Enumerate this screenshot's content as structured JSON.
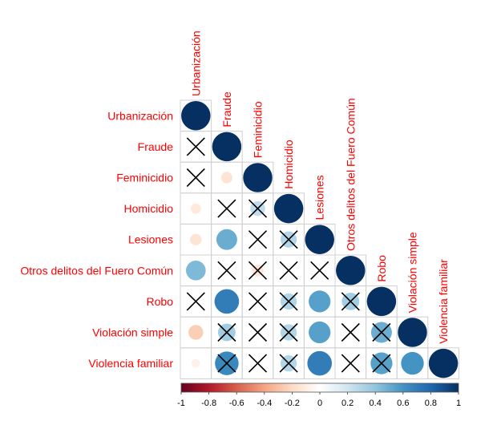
{
  "chart_data": {
    "type": "heatmap",
    "subtype": "correlation-matrix-lower-triangle",
    "labels": [
      "Urbanización",
      "Fraude",
      "Feminicidio",
      "Homicidio",
      "Lesiones",
      "Otros delitos del Fuero Común",
      "Robo",
      "Violación simple",
      "Violencia familiar"
    ],
    "cells": [
      {
        "row": 0,
        "col": 0,
        "value": 1.0,
        "insignificant": false
      },
      {
        "row": 1,
        "col": 0,
        "value": 0.0,
        "insignificant": true
      },
      {
        "row": 1,
        "col": 1,
        "value": 1.0,
        "insignificant": false
      },
      {
        "row": 2,
        "col": 0,
        "value": 0.0,
        "insignificant": true
      },
      {
        "row": 2,
        "col": 1,
        "value": -0.15,
        "insignificant": false
      },
      {
        "row": 2,
        "col": 2,
        "value": 1.0,
        "insignificant": false
      },
      {
        "row": 3,
        "col": 0,
        "value": -0.12,
        "insignificant": false
      },
      {
        "row": 3,
        "col": 1,
        "value": 0.0,
        "insignificant": true
      },
      {
        "row": 3,
        "col": 2,
        "value": 0.25,
        "insignificant": true
      },
      {
        "row": 3,
        "col": 3,
        "value": 1.0,
        "insignificant": false
      },
      {
        "row": 4,
        "col": 0,
        "value": -0.15,
        "insignificant": false
      },
      {
        "row": 4,
        "col": 1,
        "value": 0.5,
        "insignificant": false
      },
      {
        "row": 4,
        "col": 2,
        "value": 0.0,
        "insignificant": true
      },
      {
        "row": 4,
        "col": 3,
        "value": 0.3,
        "insignificant": true
      },
      {
        "row": 4,
        "col": 4,
        "value": 1.0,
        "insignificant": false
      },
      {
        "row": 5,
        "col": 0,
        "value": 0.45,
        "insignificant": false
      },
      {
        "row": 5,
        "col": 1,
        "value": 0.0,
        "insignificant": true
      },
      {
        "row": 5,
        "col": 2,
        "value": -0.15,
        "insignificant": true
      },
      {
        "row": 5,
        "col": 3,
        "value": 0.0,
        "insignificant": true
      },
      {
        "row": 5,
        "col": 4,
        "value": 0.0,
        "insignificant": true
      },
      {
        "row": 5,
        "col": 5,
        "value": 1.0,
        "insignificant": false
      },
      {
        "row": 6,
        "col": 0,
        "value": 0.0,
        "insignificant": true
      },
      {
        "row": 6,
        "col": 1,
        "value": 0.7,
        "insignificant": false
      },
      {
        "row": 6,
        "col": 2,
        "value": 0.0,
        "insignificant": true
      },
      {
        "row": 6,
        "col": 3,
        "value": 0.3,
        "insignificant": true
      },
      {
        "row": 6,
        "col": 4,
        "value": 0.55,
        "insignificant": false
      },
      {
        "row": 6,
        "col": 5,
        "value": 0.35,
        "insignificant": true
      },
      {
        "row": 6,
        "col": 6,
        "value": 1.0,
        "insignificant": false
      },
      {
        "row": 7,
        "col": 0,
        "value": -0.25,
        "insignificant": false
      },
      {
        "row": 7,
        "col": 1,
        "value": 0.35,
        "insignificant": true
      },
      {
        "row": 7,
        "col": 2,
        "value": 0.0,
        "insignificant": true
      },
      {
        "row": 7,
        "col": 3,
        "value": 0.3,
        "insignificant": true
      },
      {
        "row": 7,
        "col": 4,
        "value": 0.55,
        "insignificant": false
      },
      {
        "row": 7,
        "col": 5,
        "value": 0.0,
        "insignificant": true
      },
      {
        "row": 7,
        "col": 6,
        "value": 0.5,
        "insignificant": true
      },
      {
        "row": 7,
        "col": 7,
        "value": 1.0,
        "insignificant": false
      },
      {
        "row": 8,
        "col": 0,
        "value": -0.08,
        "insignificant": false
      },
      {
        "row": 8,
        "col": 1,
        "value": 0.65,
        "insignificant": true
      },
      {
        "row": 8,
        "col": 2,
        "value": 0.0,
        "insignificant": true
      },
      {
        "row": 8,
        "col": 3,
        "value": 0.3,
        "insignificant": true
      },
      {
        "row": 8,
        "col": 4,
        "value": 0.7,
        "insignificant": false
      },
      {
        "row": 8,
        "col": 5,
        "value": 0.0,
        "insignificant": true
      },
      {
        "row": 8,
        "col": 6,
        "value": 0.55,
        "insignificant": true
      },
      {
        "row": 8,
        "col": 7,
        "value": 0.6,
        "insignificant": false
      },
      {
        "row": 8,
        "col": 8,
        "value": 1.0,
        "insignificant": false
      }
    ],
    "colorbar": {
      "range": [
        -1,
        1
      ],
      "ticks": [
        "-1",
        "-0.8",
        "-0.6",
        "-0.4",
        "-0.2",
        "0",
        "0.2",
        "0.4",
        "0.6",
        "0.8",
        "1"
      ]
    },
    "label_color": "#ff0000",
    "palette": [
      "#67001f",
      "#b2182b",
      "#d6604d",
      "#f4a582",
      "#fddbc7",
      "#ffffff",
      "#d1e5f0",
      "#92c5de",
      "#4393c3",
      "#2166ac",
      "#053061"
    ],
    "grid": true,
    "cross_marks": "insignificant correlations"
  }
}
